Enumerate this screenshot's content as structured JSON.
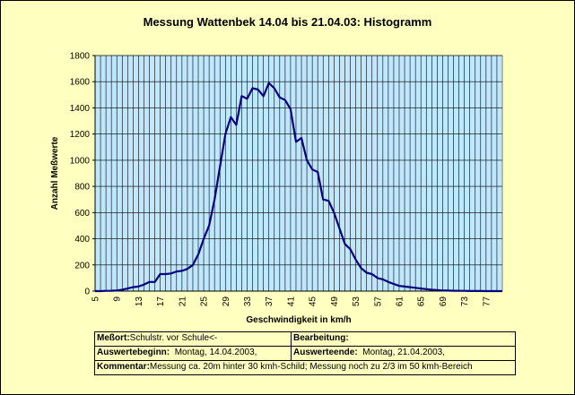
{
  "chart_data": {
    "type": "line",
    "title": "Messung Wattenbek 14.04 bis 21.04.03: Histogramm",
    "xlabel": "Geschwindigkeit in km/h",
    "ylabel": "Anzahl Meßwerte",
    "xlim": [
      5,
      80
    ],
    "ylim": [
      0,
      1800
    ],
    "x_ticks": [
      5,
      9,
      13,
      17,
      21,
      25,
      29,
      33,
      37,
      41,
      45,
      49,
      53,
      57,
      61,
      65,
      69,
      73,
      77
    ],
    "y_ticks": [
      0,
      200,
      400,
      600,
      800,
      1000,
      1200,
      1400,
      1600,
      1800
    ],
    "grid": true,
    "colors": {
      "line": "#000080",
      "plot_bg": "#bfe7ff",
      "grid": "#000000",
      "page_bg": "#ffffc0"
    },
    "series": [
      {
        "x": [
          5,
          6,
          7,
          8,
          9,
          10,
          11,
          12,
          13,
          14,
          15,
          16,
          17,
          18,
          19,
          20,
          21,
          22,
          23,
          24,
          25,
          26,
          27,
          28,
          29,
          30,
          31,
          32,
          33,
          34,
          35,
          36,
          37,
          38,
          39,
          40,
          41,
          42,
          43,
          44,
          45,
          46,
          47,
          48,
          49,
          50,
          51,
          52,
          53,
          54,
          55,
          56,
          57,
          58,
          59,
          60,
          61,
          62,
          63,
          64,
          65,
          66,
          67,
          68,
          69,
          70,
          71,
          72,
          73,
          74,
          75,
          76,
          77,
          78,
          79,
          80
        ],
        "y": [
          0,
          0,
          2,
          3,
          5,
          10,
          20,
          30,
          35,
          50,
          70,
          70,
          130,
          130,
          135,
          150,
          155,
          170,
          200,
          280,
          400,
          500,
          700,
          950,
          1200,
          1330,
          1270,
          1490,
          1470,
          1550,
          1540,
          1490,
          1590,
          1550,
          1480,
          1460,
          1390,
          1140,
          1170,
          1000,
          930,
          910,
          700,
          690,
          600,
          480,
          360,
          320,
          240,
          175,
          140,
          130,
          100,
          90,
          70,
          55,
          40,
          35,
          30,
          25,
          20,
          15,
          10,
          8,
          5,
          4,
          3,
          2,
          2,
          1,
          1,
          1,
          0,
          0,
          0,
          0
        ]
      }
    ]
  },
  "info": {
    "messort_label": "Meßort:",
    "messort_value": "Schulstr. vor Schule<-",
    "bearbeitung_label": "Bearbeitung:",
    "auswertebeginn_label": "Auswertebeginn:",
    "auswertebeginn_value": "Montag, 14.04.2003,",
    "auswerteende_label": "Auswerteende:",
    "auswerteende_value": "Montag, 21.04.2003,",
    "kommentar_label": "Kommentar:",
    "kommentar_value": "Messung ca. 20m hinter 30 kmh-Schild; Messung noch zu 2/3 im 50 kmh-Bereich"
  }
}
